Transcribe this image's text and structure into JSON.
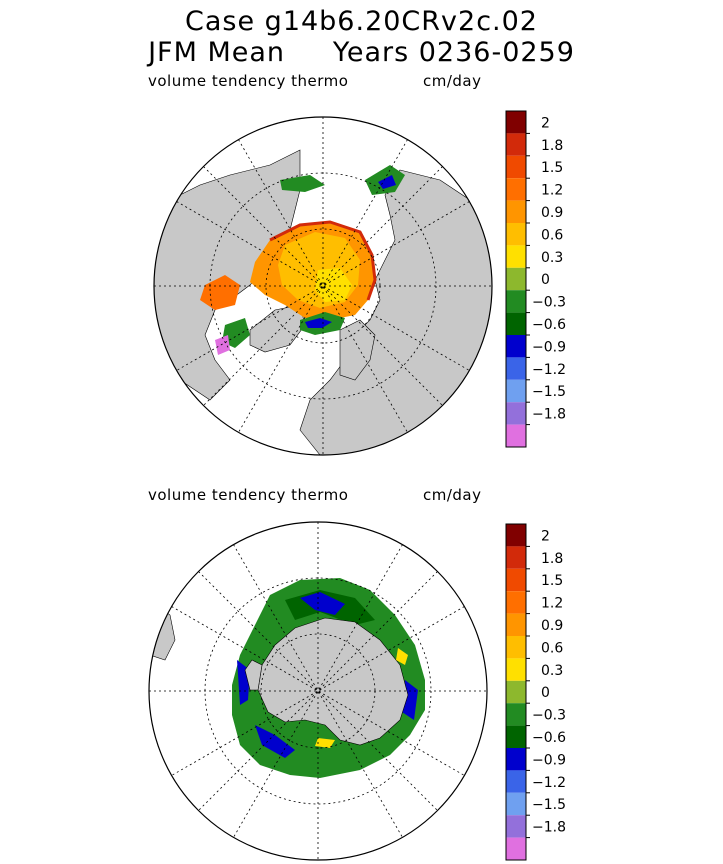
{
  "header": {
    "title_line1": "Case g14b6.20CRv2c.02",
    "title_line2": "JFM Mean     Years 0236-0259"
  },
  "panels": [
    {
      "variable_label": "volume tendency thermo",
      "units": "cm/day",
      "hemisphere": "north"
    },
    {
      "variable_label": "volume tendency thermo",
      "units": "cm/day",
      "hemisphere": "south"
    }
  ],
  "colorbar": {
    "tick_labels": [
      "2",
      "1.8",
      "1.5",
      "1.2",
      "0.9",
      "0.6",
      "0.3",
      "0",
      "-0.3",
      "-0.6",
      "-0.9",
      "-1.2",
      "-1.5",
      "-1.8"
    ],
    "colors": [
      "#800000",
      "#d22a0a",
      "#f04a00",
      "#ff6f00",
      "#ff9500",
      "#ffbe00",
      "#ffe000",
      "#8db82d",
      "#228b22",
      "#006400",
      "#0000cd",
      "#3a64e8",
      "#6fa0f0",
      "#9370db",
      "#e070e0"
    ]
  },
  "chart_data": [
    {
      "type": "heatmap",
      "title": "volume tendency thermo",
      "units": "cm/day",
      "projection": "north polar stereographic",
      "colorbar_ticks": [
        2,
        1.8,
        1.5,
        1.2,
        0.9,
        0.6,
        0.3,
        0,
        -0.3,
        -0.6,
        -0.9,
        -1.2,
        -1.5,
        -1.8
      ],
      "range": [
        -2.1,
        2.1
      ]
    },
    {
      "type": "heatmap",
      "title": "volume tendency thermo",
      "units": "cm/day",
      "projection": "south polar stereographic",
      "colorbar_ticks": [
        2,
        1.8,
        1.5,
        1.2,
        0.9,
        0.6,
        0.3,
        0,
        -0.3,
        -0.6,
        -0.9,
        -1.2,
        -1.5,
        -1.8
      ],
      "range": [
        -2.1,
        2.1
      ]
    }
  ]
}
